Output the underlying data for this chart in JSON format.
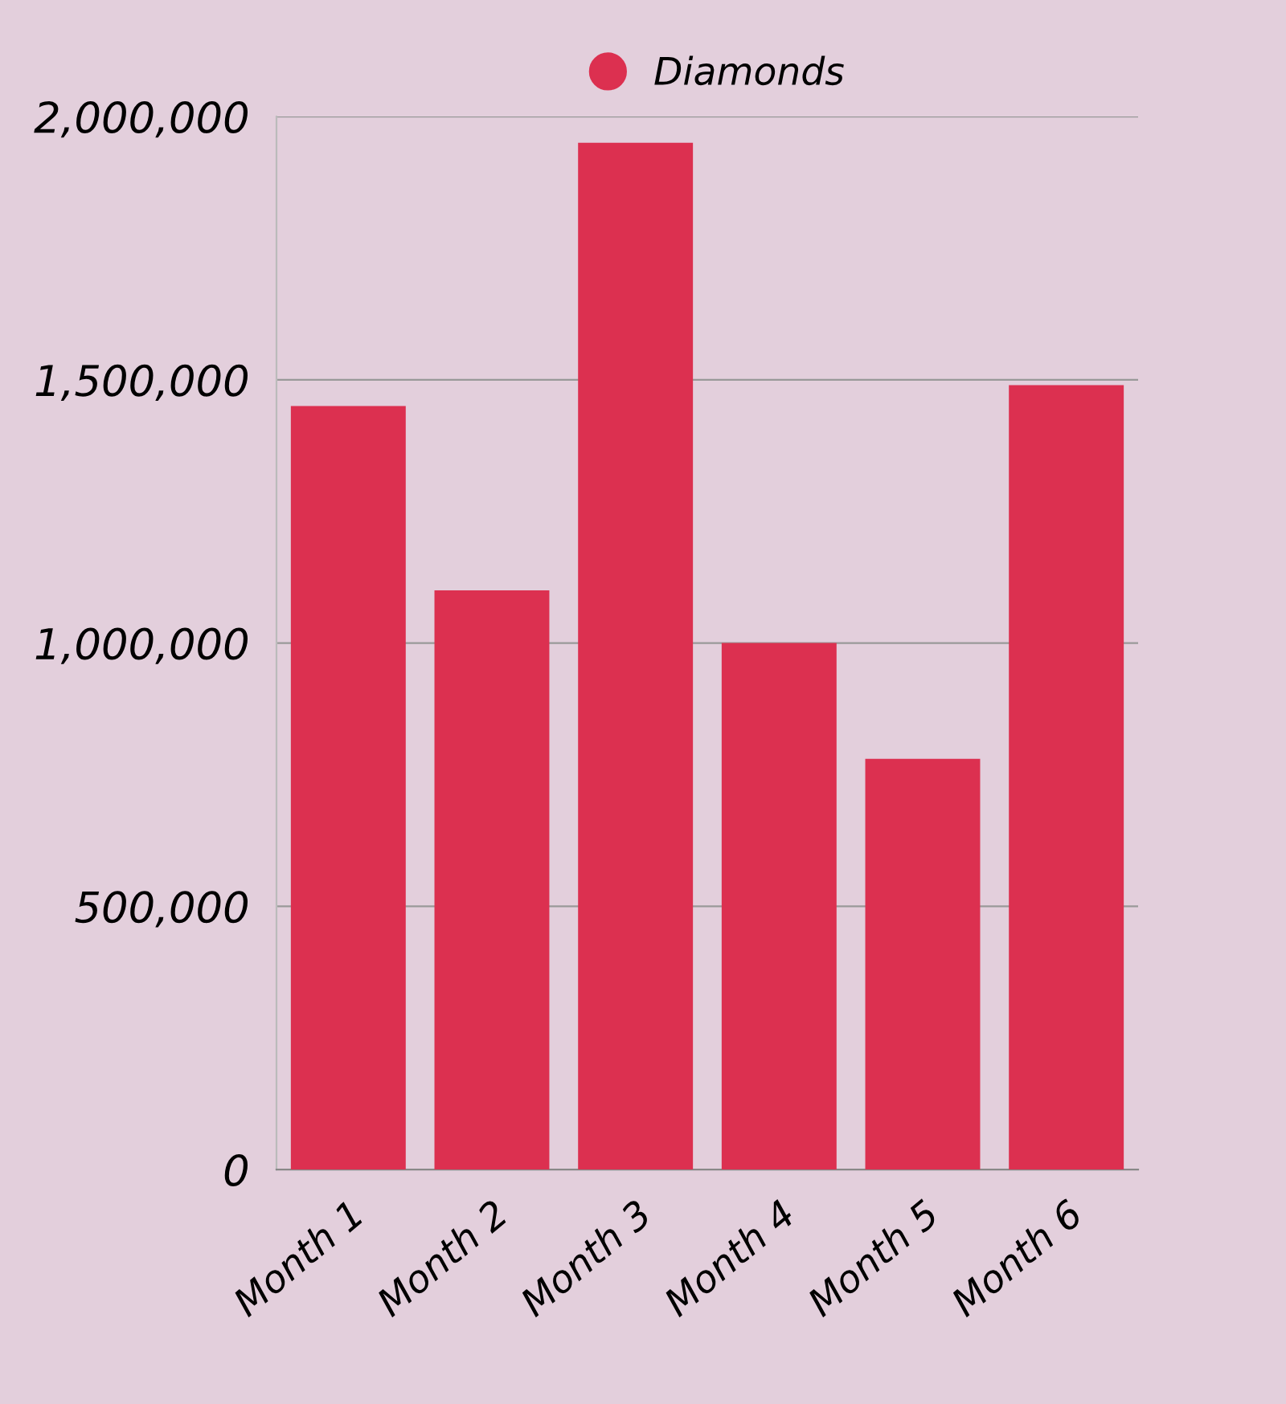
{
  "chart_data": {
    "type": "bar",
    "categories": [
      "Month 1",
      "Month 2",
      "Month 3",
      "Month 4",
      "Month 5",
      "Month 6"
    ],
    "series": [
      {
        "name": "Diamonds",
        "color": "#dc3050",
        "values": [
          1450000,
          1100000,
          1950000,
          1000000,
          780000,
          1490000
        ]
      }
    ],
    "ylim": [
      0,
      2000000
    ],
    "yticks": [
      {
        "value": 0,
        "label": "0"
      },
      {
        "value": 500000,
        "label": "500,000"
      },
      {
        "value": 1000000,
        "label": "1,000,000"
      },
      {
        "value": 1500000,
        "label": "1,500,000"
      },
      {
        "value": 2000000,
        "label": "2,000,000"
      }
    ],
    "grid": "y",
    "legend": "top"
  }
}
